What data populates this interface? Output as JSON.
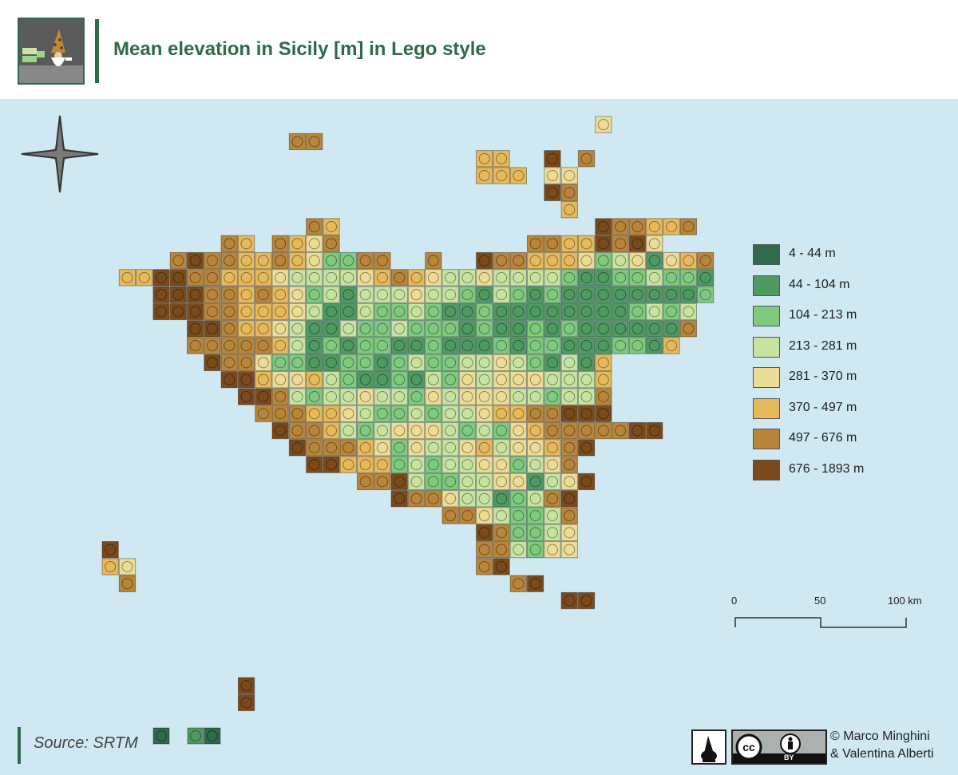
{
  "header": {
    "title": "Mean elevation in Sicily [m] in Lego style"
  },
  "legend": [
    {
      "label": "4 - 44 m",
      "color": "#2f6b4a"
    },
    {
      "label": "44 - 104 m",
      "color": "#4f9a62"
    },
    {
      "label": "104 - 213 m",
      "color": "#7fca7f"
    },
    {
      "label": "213 - 281 m",
      "color": "#c8e3a0"
    },
    {
      "label": "281 - 370 m",
      "color": "#ecdc96"
    },
    {
      "label": "370 - 497 m",
      "color": "#e6b95b"
    },
    {
      "label": "497 - 676 m",
      "color": "#b9853a"
    },
    {
      "label": "676 - 1893 m",
      "color": "#7a4a1c"
    }
  ],
  "scale": {
    "labels": [
      "0",
      "50",
      "100 km"
    ]
  },
  "footer": {
    "source": "Source: SRTM",
    "credit_line1": "© Marco Minghini",
    "credit_line2": "& Valentina Alberti",
    "license_badge": "BY"
  },
  "colors": {
    "water": "#cfe8f1",
    "accent": "#2d6a4a"
  }
}
